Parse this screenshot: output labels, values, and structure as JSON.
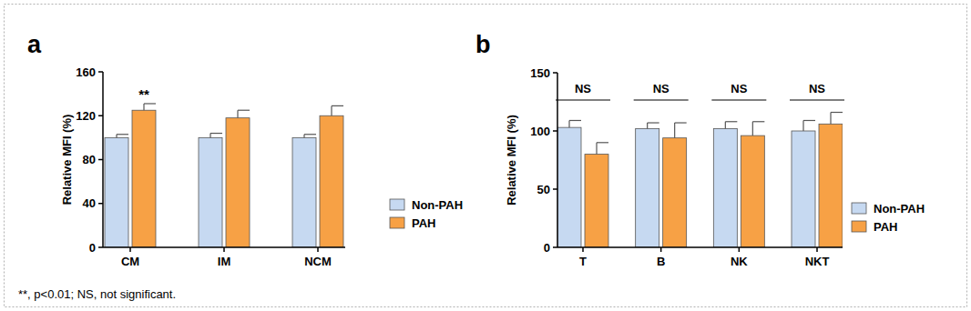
{
  "chart_data": [
    {
      "type": "bar",
      "title": "a",
      "ylabel": "Relative MFI (%)",
      "categories": [
        "CM",
        "IM",
        "NCM"
      ],
      "series": [
        {
          "name": "Non-PAH",
          "color": "#c6d9f1",
          "values": [
            100,
            100,
            100
          ],
          "errors": [
            3,
            4,
            3
          ]
        },
        {
          "name": "PAH",
          "color": "#f7a145",
          "values": [
            125,
            118,
            120
          ],
          "errors": [
            6,
            7,
            9
          ]
        }
      ],
      "ylim": [
        0,
        160
      ],
      "yticks": [
        0,
        40,
        80,
        120,
        160
      ],
      "grid": false,
      "legend": "right",
      "annotations": [
        {
          "text": "**",
          "category": "CM",
          "series": "PAH"
        }
      ]
    },
    {
      "type": "bar",
      "title": "b",
      "ylabel": "Relative MFI (%)",
      "categories": [
        "T",
        "B",
        "NK",
        "NKT"
      ],
      "series": [
        {
          "name": "Non-PAH",
          "color": "#c6d9f1",
          "values": [
            103,
            102,
            102,
            100
          ],
          "errors": [
            6,
            5,
            6,
            9
          ]
        },
        {
          "name": "PAH",
          "color": "#f7a145",
          "values": [
            80,
            94,
            96,
            106
          ],
          "errors": [
            10,
            13,
            12,
            10
          ]
        }
      ],
      "ylim": [
        0,
        150
      ],
      "yticks": [
        0,
        50,
        100,
        150
      ],
      "grid": false,
      "legend": "right",
      "annotations": [
        {
          "text": "NS",
          "category": "T"
        },
        {
          "text": "NS",
          "category": "B"
        },
        {
          "text": "NS",
          "category": "NK"
        },
        {
          "text": "NS",
          "category": "NKT"
        }
      ]
    }
  ],
  "footnote": "**, p<0.01; NS, not significant."
}
